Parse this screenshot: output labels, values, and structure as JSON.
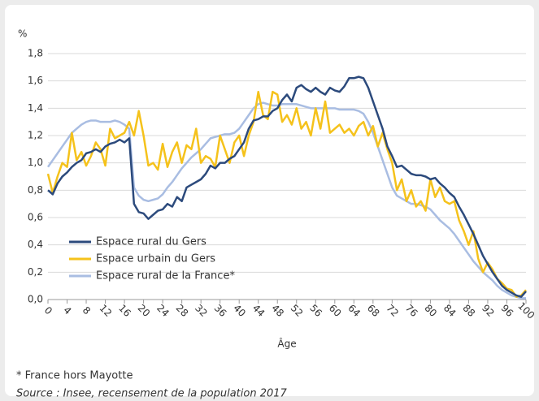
{
  "chart_data": {
    "type": "line",
    "y_label": "%",
    "x_label": "Âge",
    "footnote": "* France hors Mayotte",
    "source": "Source : Insee, recensement de la population 2017",
    "legend": "center left",
    "x": [
      0,
      1,
      2,
      3,
      4,
      5,
      6,
      7,
      8,
      9,
      10,
      11,
      12,
      13,
      14,
      15,
      16,
      17,
      18,
      19,
      20,
      21,
      22,
      23,
      24,
      25,
      26,
      27,
      28,
      29,
      30,
      31,
      32,
      33,
      34,
      35,
      36,
      37,
      38,
      39,
      40,
      41,
      42,
      43,
      44,
      45,
      46,
      47,
      48,
      49,
      50,
      51,
      52,
      53,
      54,
      55,
      56,
      57,
      58,
      59,
      60,
      61,
      62,
      63,
      64,
      65,
      66,
      67,
      68,
      69,
      70,
      71,
      72,
      73,
      74,
      75,
      76,
      77,
      78,
      79,
      80,
      81,
      82,
      83,
      84,
      85,
      86,
      87,
      88,
      89,
      90,
      91,
      92,
      93,
      94,
      95,
      96,
      97,
      98,
      99,
      100
    ],
    "xlim": [
      0,
      100
    ],
    "xticks": [
      0,
      4,
      8,
      12,
      16,
      20,
      24,
      28,
      32,
      36,
      40,
      44,
      48,
      52,
      56,
      60,
      64,
      68,
      72,
      76,
      80,
      84,
      88,
      92,
      96,
      100
    ],
    "ylim": [
      0,
      1.8
    ],
    "yticks": [
      {
        "value": 0,
        "label": "0,0"
      },
      {
        "value": 0.2,
        "label": "0,2"
      },
      {
        "value": 0.4,
        "label": "0,4"
      },
      {
        "value": 0.6,
        "label": "0,6"
      },
      {
        "value": 0.8,
        "label": "0,8"
      },
      {
        "value": 1.0,
        "label": "1,0"
      },
      {
        "value": 1.2,
        "label": "1,2"
      },
      {
        "value": 1.4,
        "label": "1,4"
      },
      {
        "value": 1.6,
        "label": "1,6"
      },
      {
        "value": 1.8,
        "label": "1,8"
      }
    ],
    "grid": true,
    "series": [
      {
        "name": "Espace rural du Gers",
        "color": "#2c4a7c",
        "values": [
          0.8,
          0.77,
          0.85,
          0.9,
          0.93,
          0.97,
          1.0,
          1.02,
          1.07,
          1.08,
          1.1,
          1.08,
          1.12,
          1.14,
          1.15,
          1.17,
          1.15,
          1.18,
          0.7,
          0.64,
          0.63,
          0.59,
          0.62,
          0.65,
          0.66,
          0.7,
          0.68,
          0.75,
          0.72,
          0.82,
          0.84,
          0.86,
          0.88,
          0.92,
          0.98,
          0.96,
          1.0,
          1.0,
          1.03,
          1.05,
          1.1,
          1.15,
          1.25,
          1.31,
          1.32,
          1.34,
          1.34,
          1.38,
          1.4,
          1.46,
          1.5,
          1.45,
          1.55,
          1.57,
          1.54,
          1.52,
          1.55,
          1.52,
          1.5,
          1.55,
          1.53,
          1.52,
          1.56,
          1.62,
          1.62,
          1.63,
          1.62,
          1.55,
          1.45,
          1.35,
          1.25,
          1.12,
          1.05,
          0.97,
          0.98,
          0.95,
          0.92,
          0.91,
          0.91,
          0.9,
          0.88,
          0.89,
          0.85,
          0.82,
          0.78,
          0.75,
          0.68,
          0.62,
          0.55,
          0.48,
          0.4,
          0.32,
          0.26,
          0.2,
          0.15,
          0.1,
          0.07,
          0.05,
          0.03,
          0.02,
          0.06
        ]
      },
      {
        "name": "Espace urbain du Gers",
        "color": "#f5c21b",
        "values": [
          0.92,
          0.78,
          0.9,
          1.0,
          0.97,
          1.22,
          1.02,
          1.08,
          0.98,
          1.05,
          1.15,
          1.1,
          0.98,
          1.25,
          1.18,
          1.2,
          1.22,
          1.3,
          1.2,
          1.38,
          1.2,
          0.98,
          1.0,
          0.95,
          1.14,
          0.97,
          1.08,
          1.15,
          1.0,
          1.13,
          1.1,
          1.25,
          1.0,
          1.05,
          1.03,
          0.97,
          1.2,
          1.1,
          1.0,
          1.15,
          1.2,
          1.05,
          1.2,
          1.3,
          1.52,
          1.35,
          1.32,
          1.52,
          1.5,
          1.3,
          1.35,
          1.28,
          1.4,
          1.25,
          1.3,
          1.2,
          1.4,
          1.25,
          1.45,
          1.22,
          1.25,
          1.28,
          1.22,
          1.25,
          1.2,
          1.27,
          1.3,
          1.2,
          1.27,
          1.12,
          1.22,
          1.1,
          1.0,
          0.8,
          0.88,
          0.72,
          0.8,
          0.68,
          0.72,
          0.65,
          0.88,
          0.75,
          0.82,
          0.72,
          0.7,
          0.72,
          0.58,
          0.5,
          0.4,
          0.5,
          0.3,
          0.2,
          0.27,
          0.22,
          0.15,
          0.12,
          0.08,
          0.07,
          0.02,
          0.03,
          0.07
        ]
      },
      {
        "name": "Espace rural de la France*",
        "color": "#a9bde2",
        "values": [
          0.97,
          1.02,
          1.07,
          1.12,
          1.17,
          1.22,
          1.25,
          1.28,
          1.3,
          1.31,
          1.31,
          1.3,
          1.3,
          1.3,
          1.31,
          1.3,
          1.28,
          1.25,
          0.82,
          0.76,
          0.73,
          0.72,
          0.73,
          0.74,
          0.77,
          0.82,
          0.86,
          0.91,
          0.96,
          1.0,
          1.04,
          1.07,
          1.1,
          1.14,
          1.18,
          1.19,
          1.2,
          1.21,
          1.21,
          1.22,
          1.25,
          1.3,
          1.35,
          1.4,
          1.43,
          1.44,
          1.43,
          1.42,
          1.42,
          1.43,
          1.43,
          1.43,
          1.43,
          1.42,
          1.41,
          1.4,
          1.4,
          1.4,
          1.4,
          1.4,
          1.4,
          1.39,
          1.39,
          1.39,
          1.39,
          1.38,
          1.36,
          1.3,
          1.22,
          1.12,
          1.02,
          0.92,
          0.82,
          0.76,
          0.74,
          0.72,
          0.7,
          0.7,
          0.69,
          0.68,
          0.66,
          0.62,
          0.58,
          0.55,
          0.52,
          0.48,
          0.43,
          0.38,
          0.33,
          0.28,
          0.24,
          0.2,
          0.17,
          0.14,
          0.1,
          0.07,
          0.05,
          0.03,
          0.02,
          0.01,
          0.01
        ]
      }
    ]
  }
}
